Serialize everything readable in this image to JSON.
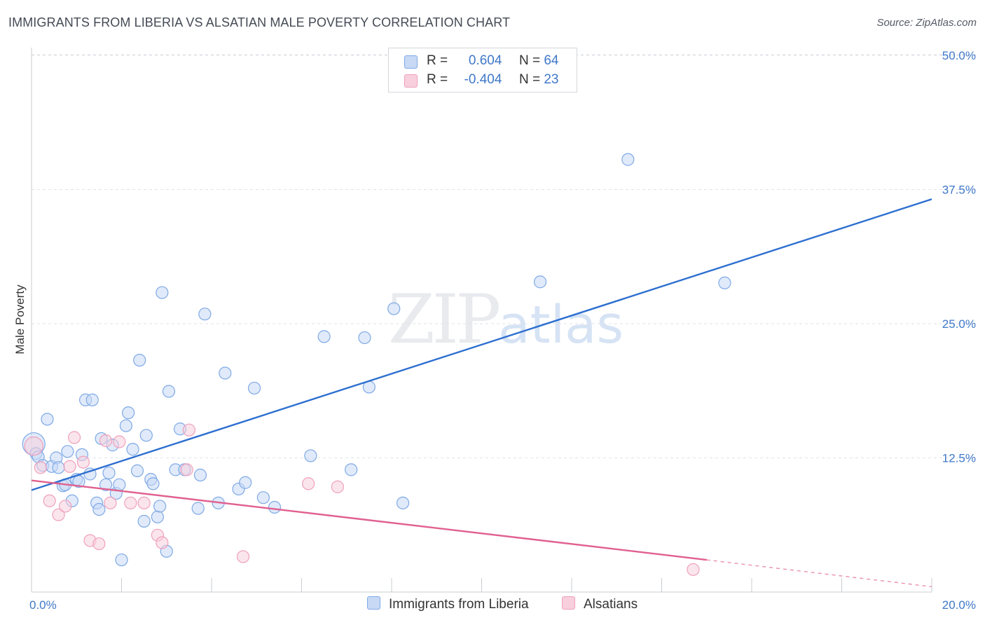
{
  "title": "IMMIGRANTS FROM LIBERIA VS ALSATIAN MALE POVERTY CORRELATION CHART",
  "source": "Source: ZipAtlas.com",
  "watermark": {
    "zip": "ZIP",
    "atlas": "atlas"
  },
  "legend": {
    "rows": [
      {
        "r_label": "R =",
        "r_value": "0.604",
        "n_label": "N =",
        "n_value": "64"
      },
      {
        "r_label": "R =",
        "r_value": "-0.404",
        "n_label": "N =",
        "n_value": "23"
      }
    ]
  },
  "bottom_legend": [
    "Immigrants from Liberia",
    "Alsatians"
  ],
  "colors": {
    "blue": "#7fa9e6",
    "blue_fill": "#c7d9f5",
    "blue_line": "#2d6fd0",
    "pink": "#f0a0bb",
    "pink_fill": "#f8cfdc",
    "pink_line": "#e0608f",
    "axis_text": "#3f78c8",
    "grid": "#dfe2e7"
  },
  "chart_data": {
    "type": "scatter",
    "title": "IMMIGRANTS FROM LIBERIA VS ALSATIAN MALE POVERTY CORRELATION CHART",
    "xlabel": "",
    "ylabel": "Male Poverty",
    "xlim": [
      0,
      20
    ],
    "ylim": [
      0,
      50
    ],
    "x_tick_labels": [
      "0.0%",
      "20.0%"
    ],
    "y_ticks": [
      12.5,
      25.0,
      37.5,
      50.0
    ],
    "y_tick_labels": [
      "12.5%",
      "25.0%",
      "37.5%",
      "50.0%"
    ],
    "grid": true,
    "legend_position": "top-center",
    "series": [
      {
        "name": "Immigrants from Liberia",
        "color": "blue",
        "points": [
          [
            0.05,
            13.8
          ],
          [
            0.1,
            12.9
          ],
          [
            0.15,
            12.6
          ],
          [
            0.25,
            11.8
          ],
          [
            0.35,
            16.1
          ],
          [
            0.45,
            11.7
          ],
          [
            0.55,
            12.5
          ],
          [
            0.6,
            11.6
          ],
          [
            0.7,
            9.9
          ],
          [
            0.75,
            10.0
          ],
          [
            0.8,
            13.1
          ],
          [
            0.9,
            8.5
          ],
          [
            1.0,
            10.5
          ],
          [
            1.05,
            10.3
          ],
          [
            1.12,
            12.8
          ],
          [
            1.2,
            17.9
          ],
          [
            1.3,
            11.0
          ],
          [
            1.35,
            17.9
          ],
          [
            1.45,
            8.3
          ],
          [
            1.5,
            7.7
          ],
          [
            1.55,
            14.3
          ],
          [
            1.65,
            10.0
          ],
          [
            1.72,
            11.1
          ],
          [
            1.8,
            13.7
          ],
          [
            1.88,
            9.2
          ],
          [
            1.95,
            10.0
          ],
          [
            2.0,
            3.0
          ],
          [
            2.1,
            15.5
          ],
          [
            2.15,
            16.7
          ],
          [
            2.25,
            13.3
          ],
          [
            2.35,
            11.3
          ],
          [
            2.4,
            21.6
          ],
          [
            2.5,
            6.6
          ],
          [
            2.55,
            14.6
          ],
          [
            2.65,
            10.5
          ],
          [
            2.7,
            10.1
          ],
          [
            2.8,
            7.0
          ],
          [
            2.85,
            8.0
          ],
          [
            2.9,
            27.9
          ],
          [
            3.0,
            3.8
          ],
          [
            3.05,
            18.7
          ],
          [
            3.2,
            11.4
          ],
          [
            3.3,
            15.2
          ],
          [
            3.4,
            11.4
          ],
          [
            3.7,
            7.8
          ],
          [
            3.75,
            10.9
          ],
          [
            3.85,
            25.9
          ],
          [
            4.15,
            8.3
          ],
          [
            4.3,
            20.4
          ],
          [
            4.6,
            9.6
          ],
          [
            4.75,
            10.2
          ],
          [
            4.95,
            19.0
          ],
          [
            5.15,
            8.8
          ],
          [
            5.4,
            7.9
          ],
          [
            6.2,
            12.7
          ],
          [
            6.5,
            23.8
          ],
          [
            7.1,
            11.4
          ],
          [
            7.4,
            23.7
          ],
          [
            7.5,
            19.1
          ],
          [
            8.05,
            26.4
          ],
          [
            8.25,
            8.3
          ],
          [
            11.3,
            28.9
          ],
          [
            13.25,
            40.3
          ],
          [
            15.4,
            28.8
          ]
        ],
        "trend": {
          "x": [
            0,
            20
          ],
          "y": [
            9.5,
            36.6
          ]
        }
      },
      {
        "name": "Alsatians",
        "color": "pink",
        "points": [
          [
            0.05,
            13.6
          ],
          [
            0.2,
            11.6
          ],
          [
            0.4,
            8.5
          ],
          [
            0.6,
            7.2
          ],
          [
            0.75,
            8.0
          ],
          [
            0.85,
            11.7
          ],
          [
            0.95,
            14.4
          ],
          [
            1.15,
            12.1
          ],
          [
            1.3,
            4.8
          ],
          [
            1.5,
            4.5
          ],
          [
            1.65,
            14.1
          ],
          [
            1.75,
            8.3
          ],
          [
            1.95,
            14.0
          ],
          [
            2.2,
            8.3
          ],
          [
            2.5,
            8.3
          ],
          [
            2.8,
            5.3
          ],
          [
            2.9,
            4.6
          ],
          [
            3.45,
            11.4
          ],
          [
            3.5,
            15.1
          ],
          [
            4.7,
            3.3
          ],
          [
            6.15,
            10.1
          ],
          [
            6.8,
            9.8
          ],
          [
            14.7,
            2.1
          ]
        ],
        "trend": {
          "x": [
            0,
            15
          ],
          "y": [
            10.4,
            3.0
          ]
        },
        "trend_extension": {
          "x": [
            15,
            20
          ],
          "y": [
            3.0,
            0.5
          ]
        }
      }
    ]
  }
}
